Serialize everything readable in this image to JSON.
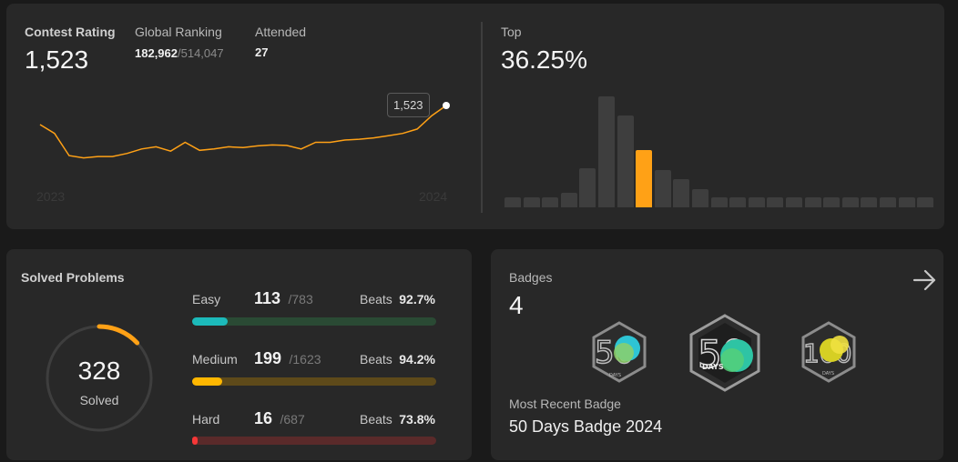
{
  "contest": {
    "rating_label": "Contest Rating",
    "rating_value": "1,523",
    "global_ranking_label": "Global Ranking",
    "global_ranking_value": "182,962",
    "global_ranking_total": "/514,047",
    "attended_label": "Attended",
    "attended_value": "27",
    "tooltip_value": "1,523",
    "year_start": "2023",
    "year_end": "2024",
    "line_points": [
      1480,
      1460,
      1410,
      1405,
      1408,
      1408,
      1415,
      1425,
      1430,
      1420,
      1440,
      1422,
      1425,
      1430,
      1428,
      1432,
      1434,
      1433,
      1425,
      1440,
      1440,
      1445,
      1447,
      1450,
      1455,
      1460,
      1470,
      1500,
      1523
    ],
    "accent_color": "#ffa116"
  },
  "top": {
    "label": "Top",
    "value": "36.25%",
    "histogram": [
      0.06,
      0.06,
      0.06,
      0.09,
      0.24,
      0.68,
      0.56,
      0.35,
      0.23,
      0.17,
      0.11,
      0.06,
      0.06,
      0.06,
      0.06,
      0.06,
      0.06,
      0.06,
      0.06,
      0.06,
      0.06,
      0.06,
      0.06
    ],
    "highlight_index": 7
  },
  "solved": {
    "title": "Solved Problems",
    "count": "328",
    "count_label": "Solved",
    "progress_fraction": 0.13,
    "difficulties": [
      {
        "name": "Easy",
        "count": "113",
        "total": "/783",
        "beats_label": "Beats",
        "beats": "92.7%",
        "fraction": 0.144,
        "color": "#1cbaba",
        "track": "#2a4a34"
      },
      {
        "name": "Medium",
        "count": "199",
        "total": "/1623",
        "beats_label": "Beats",
        "beats": "94.2%",
        "fraction": 0.123,
        "color": "#ffb700",
        "track": "#5e4a1a"
      },
      {
        "name": "Hard",
        "count": "16",
        "total": "/687",
        "beats_label": "Beats",
        "beats": "73.8%",
        "fraction": 0.023,
        "color": "#f63737",
        "track": "#5a2a2a"
      }
    ]
  },
  "badges": {
    "title": "Badges",
    "count": "4",
    "arrow_icon": "arrow-right-icon",
    "items": [
      {
        "icon": "50-days-badge-icon",
        "text": "50",
        "sub": "DAYS"
      },
      {
        "icon": "50-days-2024-badge-icon",
        "text": "50",
        "sub": "DAYS"
      },
      {
        "icon": "100-days-badge-icon",
        "text": "100",
        "sub": "DAYS"
      }
    ],
    "recent_label": "Most Recent Badge",
    "recent_value": "50 Days Badge 2024"
  }
}
